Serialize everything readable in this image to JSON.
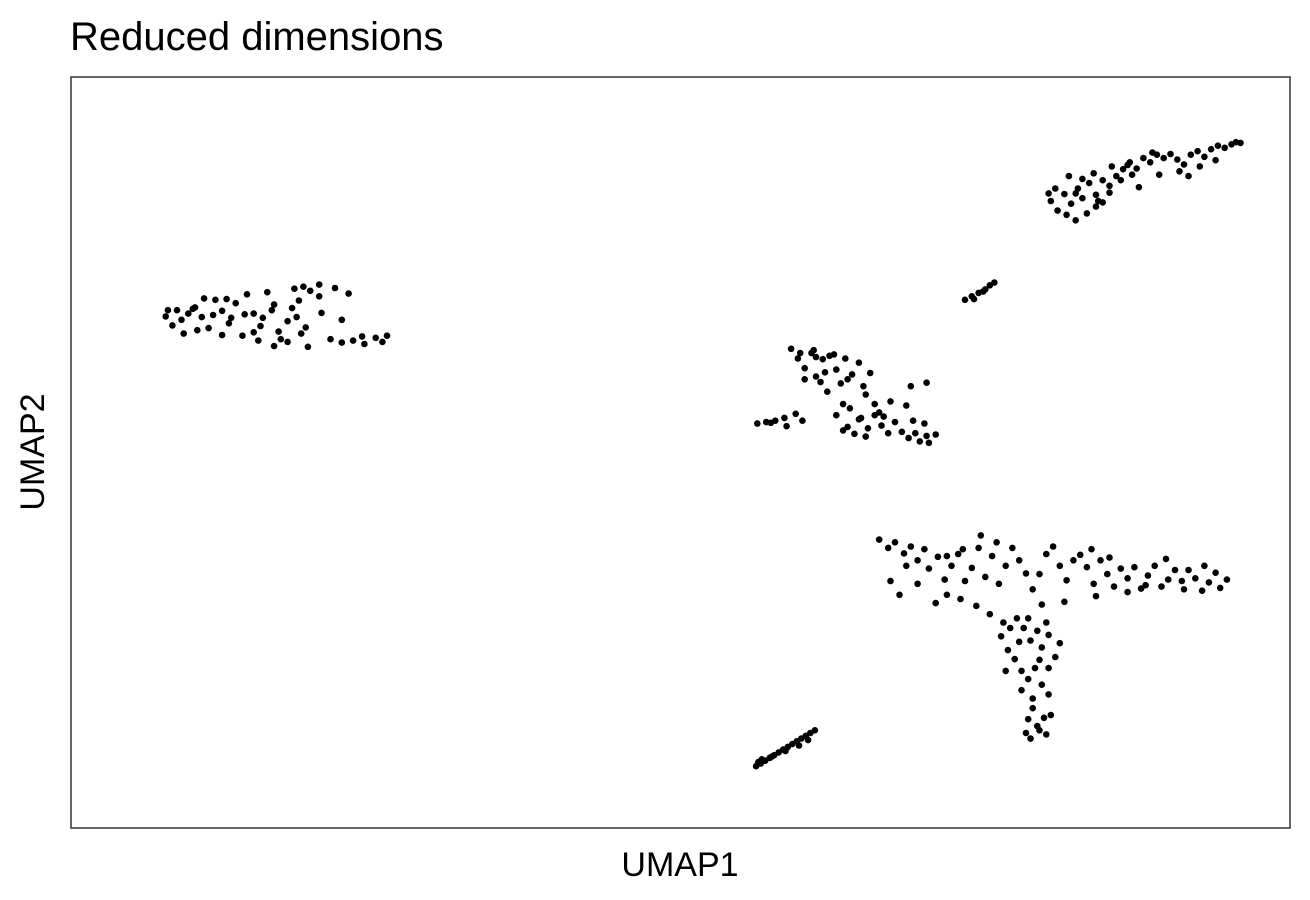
{
  "chart_data": {
    "type": "scatter",
    "title": "Reduced dimensions",
    "xlabel": "UMAP1",
    "ylabel": "UMAP2",
    "xlim": [
      0,
      100
    ],
    "ylim": [
      0,
      100
    ],
    "grid": false,
    "legend": "none",
    "point_color": "#000000",
    "x_ticks": [],
    "y_ticks": [],
    "points": [
      [
        4.4,
        69.7
      ],
      [
        5.0,
        68.4
      ],
      [
        5.8,
        69.2
      ],
      [
        6.4,
        70.1
      ],
      [
        6.0,
        67.2
      ],
      [
        7.0,
        71.0
      ],
      [
        7.6,
        69.6
      ],
      [
        8.2,
        68.0
      ],
      [
        8.8,
        72.1
      ],
      [
        9.4,
        70.5
      ],
      [
        10.0,
        68.7
      ],
      [
        10.6,
        71.6
      ],
      [
        11.2,
        66.9
      ],
      [
        11.6,
        72.9
      ],
      [
        12.2,
        70.1
      ],
      [
        12.8,
        68.3
      ],
      [
        13.4,
        73.2
      ],
      [
        14.0,
        71.4
      ],
      [
        14.6,
        66.4
      ],
      [
        15.2,
        69.0
      ],
      [
        15.8,
        73.7
      ],
      [
        16.2,
        72.0
      ],
      [
        16.8,
        68.1
      ],
      [
        17.0,
        65.3
      ],
      [
        12.6,
        66.2
      ],
      [
        14.0,
        65.4
      ],
      [
        9.4,
        67.0
      ],
      [
        7.2,
        67.7
      ],
      [
        18.0,
        72.6
      ],
      [
        19.0,
        66.4
      ],
      [
        20.0,
        65.9
      ],
      [
        21.0,
        66.2
      ],
      [
        22.0,
        65.7
      ],
      [
        23.0,
        66.6
      ],
      [
        23.6,
        66.0
      ],
      [
        24.0,
        66.9
      ],
      [
        20.6,
        73.0
      ],
      [
        19.4,
        73.8
      ],
      [
        18.2,
        70.2
      ],
      [
        16.0,
        69.6
      ],
      [
        15.2,
        66.0
      ],
      [
        13.0,
        69.5
      ],
      [
        11.4,
        70.0
      ],
      [
        10.2,
        69.5
      ],
      [
        8.6,
        69.9
      ],
      [
        6.8,
        70.8
      ],
      [
        5.4,
        70.6
      ],
      [
        7.8,
        72.3
      ],
      [
        9.8,
        72.2
      ],
      [
        16.6,
        74.0
      ],
      [
        17.2,
        73.4
      ],
      [
        18.0,
        74.3
      ],
      [
        20.0,
        69.2
      ],
      [
        15.6,
        70.9
      ],
      [
        14.4,
        67.5
      ],
      [
        12.2,
        67.4
      ],
      [
        13.8,
        70.6
      ],
      [
        16.4,
        67.2
      ],
      [
        4.6,
        70.6
      ],
      [
        21.8,
        66.8
      ],
      [
        56.8,
        54.2
      ],
      [
        57.6,
        54.4
      ],
      [
        58.4,
        54.6
      ],
      [
        59.2,
        55.0
      ],
      [
        60.2,
        55.6
      ],
      [
        60.8,
        54.6
      ],
      [
        59.4,
        53.8
      ],
      [
        58.0,
        54.3
      ],
      [
        59.8,
        65.0
      ],
      [
        60.4,
        63.6
      ],
      [
        61.0,
        62.2
      ],
      [
        61.6,
        64.4
      ],
      [
        62.0,
        61.0
      ],
      [
        62.6,
        63.5
      ],
      [
        63.2,
        64.0
      ],
      [
        63.8,
        62.0
      ],
      [
        64.2,
        60.0
      ],
      [
        64.6,
        63.6
      ],
      [
        65.2,
        61.3
      ],
      [
        65.8,
        63.0
      ],
      [
        66.2,
        59.6
      ],
      [
        66.8,
        61.5
      ],
      [
        62.4,
        60.2
      ],
      [
        63.0,
        58.8
      ],
      [
        64.4,
        57.0
      ],
      [
        65.0,
        56.4
      ],
      [
        65.8,
        54.8
      ],
      [
        66.6,
        53.5
      ],
      [
        67.2,
        55.4
      ],
      [
        67.8,
        53.9
      ],
      [
        68.4,
        52.8
      ],
      [
        69.0,
        54.4
      ],
      [
        69.6,
        53.0
      ],
      [
        70.2,
        52.1
      ],
      [
        70.8,
        52.8
      ],
      [
        71.2,
        51.6
      ],
      [
        71.8,
        52.4
      ],
      [
        72.6,
        52.6
      ],
      [
        70.4,
        59.6
      ],
      [
        71.8,
        60.1
      ],
      [
        70.0,
        56.8
      ],
      [
        68.6,
        57.4
      ],
      [
        67.6,
        55.8
      ],
      [
        66.4,
        52.3
      ],
      [
        65.4,
        52.7
      ],
      [
        64.8,
        53.7
      ],
      [
        63.8,
        55.4
      ],
      [
        62.0,
        63.8
      ],
      [
        60.6,
        64.4
      ],
      [
        61.8,
        64.8
      ],
      [
        63.6,
        64.2
      ],
      [
        62.8,
        61.6
      ],
      [
        64.8,
        60.6
      ],
      [
        66.4,
        58.4
      ],
      [
        67.2,
        57.0
      ],
      [
        61.0,
        60.6
      ],
      [
        70.6,
        54.6
      ],
      [
        71.6,
        54.2
      ],
      [
        72.0,
        51.4
      ],
      [
        66.0,
        55.0
      ],
      [
        68.0,
        55.2
      ],
      [
        64.4,
        53.2
      ],
      [
        75.2,
        72.1
      ],
      [
        75.8,
        72.6
      ],
      [
        76.4,
        73.1
      ],
      [
        77.0,
        73.6
      ],
      [
        77.4,
        74.2
      ],
      [
        77.8,
        74.6
      ],
      [
        76.0,
        72.2
      ],
      [
        76.8,
        73.3
      ],
      [
        82.8,
        86.4
      ],
      [
        83.4,
        85.0
      ],
      [
        84.0,
        87.4
      ],
      [
        84.6,
        86.0
      ],
      [
        85.2,
        88.2
      ],
      [
        85.6,
        86.8
      ],
      [
        86.2,
        89.0
      ],
      [
        86.8,
        87.3
      ],
      [
        87.4,
        89.4
      ],
      [
        88.0,
        88.6
      ],
      [
        88.6,
        90.0
      ],
      [
        89.2,
        91.0
      ],
      [
        89.8,
        92.0
      ],
      [
        90.4,
        91.1
      ],
      [
        91.0,
        92.6
      ],
      [
        91.6,
        92.0
      ],
      [
        92.2,
        93.1
      ],
      [
        92.8,
        92.6
      ],
      [
        93.4,
        93.2
      ],
      [
        94.0,
        92.4
      ],
      [
        94.6,
        91.7
      ],
      [
        95.2,
        93.1
      ],
      [
        95.8,
        93.6
      ],
      [
        96.4,
        92.8
      ],
      [
        97.0,
        93.9
      ],
      [
        97.6,
        94.4
      ],
      [
        98.2,
        94.1
      ],
      [
        98.8,
        94.6
      ],
      [
        99.2,
        94.9
      ],
      [
        99.6,
        94.8
      ],
      [
        84.2,
        84.4
      ],
      [
        85.0,
        83.6
      ],
      [
        86.0,
        84.6
      ],
      [
        86.8,
        85.6
      ],
      [
        87.4,
        86.2
      ],
      [
        88.0,
        87.6
      ],
      [
        89.0,
        89.4
      ],
      [
        90.0,
        90.2
      ],
      [
        90.6,
        88.4
      ],
      [
        92.4,
        90.2
      ],
      [
        94.2,
        90.7
      ],
      [
        95.0,
        90.0
      ],
      [
        96.0,
        91.4
      ],
      [
        83.2,
        88.2
      ],
      [
        85.6,
        89.6
      ],
      [
        86.6,
        90.4
      ],
      [
        88.2,
        91.4
      ],
      [
        89.6,
        91.6
      ],
      [
        82.6,
        87.5
      ],
      [
        84.4,
        90.0
      ],
      [
        91.8,
        93.4
      ],
      [
        97.4,
        92.3
      ],
      [
        87.0,
        86.4
      ],
      [
        85.0,
        87.5
      ],
      [
        67.6,
        37.4
      ],
      [
        68.4,
        36.2
      ],
      [
        69.0,
        37.0
      ],
      [
        69.8,
        35.4
      ],
      [
        70.4,
        36.4
      ],
      [
        71.0,
        34.4
      ],
      [
        71.6,
        36.0
      ],
      [
        72.0,
        33.2
      ],
      [
        72.8,
        34.9
      ],
      [
        73.4,
        31.6
      ],
      [
        74.0,
        33.6
      ],
      [
        74.6,
        35.3
      ],
      [
        75.2,
        31.4
      ],
      [
        75.8,
        33.3
      ],
      [
        76.4,
        36.2
      ],
      [
        77.0,
        32.0
      ],
      [
        77.6,
        35.0
      ],
      [
        78.2,
        31.0
      ],
      [
        78.8,
        33.6
      ],
      [
        79.4,
        36.2
      ],
      [
        80.0,
        34.4
      ],
      [
        80.6,
        32.5
      ],
      [
        81.2,
        30.2
      ],
      [
        81.8,
        32.4
      ],
      [
        82.4,
        35.3
      ],
      [
        83.0,
        36.4
      ],
      [
        83.6,
        33.6
      ],
      [
        84.2,
        31.5
      ],
      [
        84.8,
        34.4
      ],
      [
        85.4,
        35.2
      ],
      [
        86.0,
        33.4
      ],
      [
        86.6,
        31.0
      ],
      [
        87.2,
        34.4
      ],
      [
        87.8,
        32.4
      ],
      [
        88.4,
        30.6
      ],
      [
        89.0,
        33.2
      ],
      [
        89.6,
        31.8
      ],
      [
        90.2,
        33.4
      ],
      [
        90.8,
        30.3
      ],
      [
        91.4,
        32.2
      ],
      [
        92.0,
        33.6
      ],
      [
        92.6,
        30.6
      ],
      [
        93.2,
        31.6
      ],
      [
        93.8,
        33.0
      ],
      [
        94.4,
        31.4
      ],
      [
        95.0,
        33.0
      ],
      [
        95.6,
        31.8
      ],
      [
        96.2,
        30.0
      ],
      [
        96.8,
        31.2
      ],
      [
        97.4,
        32.6
      ],
      [
        97.8,
        30.4
      ],
      [
        98.4,
        31.6
      ],
      [
        70.0,
        33.6
      ],
      [
        71.0,
        31.0
      ],
      [
        72.6,
        28.2
      ],
      [
        73.6,
        29.4
      ],
      [
        74.8,
        28.8
      ],
      [
        76.2,
        27.8
      ],
      [
        77.4,
        26.6
      ],
      [
        78.6,
        25.4
      ],
      [
        79.8,
        26.0
      ],
      [
        80.4,
        24.6
      ],
      [
        81.0,
        22.8
      ],
      [
        81.6,
        24.2
      ],
      [
        82.0,
        21.8
      ],
      [
        82.6,
        23.6
      ],
      [
        83.2,
        20.4
      ],
      [
        83.6,
        22.4
      ],
      [
        78.4,
        23.4
      ],
      [
        79.0,
        21.4
      ],
      [
        79.6,
        20.1
      ],
      [
        80.2,
        18.4
      ],
      [
        80.8,
        17.2
      ],
      [
        81.4,
        18.8
      ],
      [
        82.0,
        16.4
      ],
      [
        82.6,
        15.0
      ],
      [
        80.2,
        15.6
      ],
      [
        81.2,
        13.0
      ],
      [
        80.8,
        11.4
      ],
      [
        81.6,
        10.4
      ],
      [
        82.2,
        11.6
      ],
      [
        82.8,
        12.0
      ],
      [
        80.6,
        9.4
      ],
      [
        81.0,
        8.6
      ],
      [
        81.8,
        9.8
      ],
      [
        82.4,
        9.2
      ],
      [
        81.2,
        14.4
      ],
      [
        78.8,
        18.4
      ],
      [
        80.0,
        22.6
      ],
      [
        81.8,
        20.0
      ],
      [
        82.6,
        18.8
      ],
      [
        79.2,
        24.6
      ],
      [
        80.8,
        26.0
      ],
      [
        82.4,
        25.4
      ],
      [
        69.4,
        29.4
      ],
      [
        68.6,
        31.4
      ],
      [
        73.6,
        35.0
      ],
      [
        75.0,
        36.0
      ],
      [
        86.4,
        36.0
      ],
      [
        88.0,
        34.8
      ],
      [
        93.0,
        34.6
      ],
      [
        91.2,
        30.8
      ],
      [
        86.8,
        29.2
      ],
      [
        82.0,
        28.0
      ],
      [
        78.0,
        37.0
      ],
      [
        76.6,
        38.0
      ],
      [
        84.0,
        28.4
      ],
      [
        89.6,
        29.8
      ],
      [
        94.6,
        30.2
      ],
      [
        96.4,
        33.6
      ],
      [
        56.7,
        4.6
      ],
      [
        57.1,
        5.0
      ],
      [
        57.5,
        5.4
      ],
      [
        57.9,
        5.8
      ],
      [
        58.3,
        6.2
      ],
      [
        58.7,
        6.6
      ],
      [
        59.1,
        7.0
      ],
      [
        59.5,
        7.4
      ],
      [
        59.9,
        7.8
      ],
      [
        60.3,
        8.2
      ],
      [
        60.7,
        8.6
      ],
      [
        61.1,
        9.0
      ],
      [
        61.5,
        9.4
      ],
      [
        61.9,
        9.8
      ],
      [
        57.2,
        5.6
      ],
      [
        58.1,
        6.0
      ],
      [
        59.3,
        6.8
      ],
      [
        60.5,
        7.6
      ],
      [
        61.3,
        8.4
      ],
      [
        56.9,
        5.2
      ]
    ]
  }
}
